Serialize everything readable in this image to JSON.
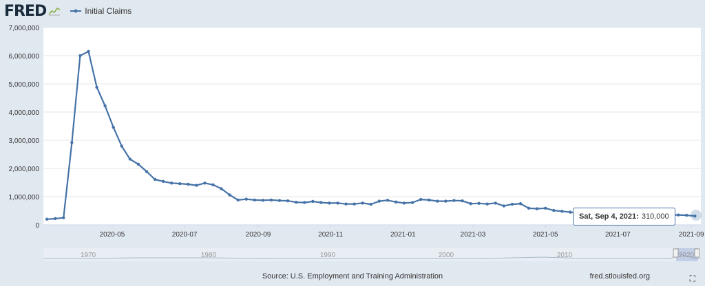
{
  "header": {
    "logo": "FRED",
    "legend_label": "Initial Claims"
  },
  "colors": {
    "series": "#4572a7",
    "background": "#e1e9f0",
    "plot_background": "#ffffff",
    "grid": "#e6e6e6"
  },
  "chart_data": {
    "type": "line",
    "title": "",
    "xlabel": "",
    "ylabel": "",
    "ylim": [
      0,
      7000000
    ],
    "y_ticks": [
      "0",
      "1,000,000",
      "2,000,000",
      "3,000,000",
      "4,000,000",
      "5,000,000",
      "6,000,000",
      "7,000,000"
    ],
    "x_ticks": [
      "2020-05",
      "2020-07",
      "2020-09",
      "2020-11",
      "2021-01",
      "2021-03",
      "2021-05",
      "2021-07",
      "2021-09"
    ],
    "grid": true,
    "legend": "top-left",
    "series": [
      {
        "name": "Initial Claims",
        "x": [
          "2020-03-07",
          "2020-03-14",
          "2020-03-21",
          "2020-03-28",
          "2020-04-04",
          "2020-04-11",
          "2020-04-18",
          "2020-04-25",
          "2020-05-02",
          "2020-05-09",
          "2020-05-16",
          "2020-05-23",
          "2020-05-30",
          "2020-06-06",
          "2020-06-13",
          "2020-06-20",
          "2020-06-27",
          "2020-07-04",
          "2020-07-11",
          "2020-07-18",
          "2020-07-25",
          "2020-08-01",
          "2020-08-08",
          "2020-08-15",
          "2020-08-22",
          "2020-08-29",
          "2020-09-05",
          "2020-09-12",
          "2020-09-19",
          "2020-09-26",
          "2020-10-03",
          "2020-10-10",
          "2020-10-17",
          "2020-10-24",
          "2020-10-31",
          "2020-11-07",
          "2020-11-14",
          "2020-11-21",
          "2020-11-28",
          "2020-12-05",
          "2020-12-12",
          "2020-12-19",
          "2020-12-26",
          "2021-01-02",
          "2021-01-09",
          "2021-01-16",
          "2021-01-23",
          "2021-01-30",
          "2021-02-06",
          "2021-02-13",
          "2021-02-20",
          "2021-02-27",
          "2021-03-06",
          "2021-03-13",
          "2021-03-20",
          "2021-03-27",
          "2021-04-03",
          "2021-04-10",
          "2021-04-17",
          "2021-04-24",
          "2021-05-01",
          "2021-05-08",
          "2021-05-15",
          "2021-05-22",
          "2021-05-29",
          "2021-06-05",
          "2021-06-12",
          "2021-06-19",
          "2021-06-26",
          "2021-07-03",
          "2021-07-10",
          "2021-07-17",
          "2021-07-24",
          "2021-07-31",
          "2021-08-07",
          "2021-08-14",
          "2021-08-21",
          "2021-08-28",
          "2021-09-04"
        ],
        "values": [
          200000,
          220000,
          250000,
          2920000,
          6000000,
          6150000,
          4880000,
          4220000,
          3460000,
          2790000,
          2330000,
          2150000,
          1890000,
          1610000,
          1540000,
          1480000,
          1460000,
          1440000,
          1400000,
          1480000,
          1420000,
          1280000,
          1060000,
          880000,
          910000,
          880000,
          870000,
          880000,
          860000,
          850000,
          800000,
          790000,
          830000,
          790000,
          770000,
          770000,
          740000,
          740000,
          770000,
          730000,
          840000,
          870000,
          810000,
          770000,
          790000,
          900000,
          880000,
          840000,
          840000,
          860000,
          850000,
          750000,
          760000,
          740000,
          770000,
          670000,
          730000,
          750000,
          590000,
          570000,
          590000,
          510000,
          480000,
          450000,
          410000,
          390000,
          380000,
          410000,
          390000,
          400000,
          420000,
          430000,
          400000,
          390000,
          370000,
          350000,
          350000,
          340000,
          310000
        ]
      }
    ]
  },
  "navigator": {
    "labels": [
      "1970",
      "1980",
      "1990",
      "2000",
      "2010",
      "2020"
    ]
  },
  "tooltip": {
    "date": "Sat, Sep 4, 2021:",
    "value": "310,000"
  },
  "footer": {
    "source": "Source: U.S. Employment and Training Administration",
    "site": "fred.stlouisfed.org"
  },
  "icons": {
    "expand": "fullscreen-icon",
    "logo_graph": "trend-graph-icon",
    "nav_handle": "range-handle-icon"
  }
}
